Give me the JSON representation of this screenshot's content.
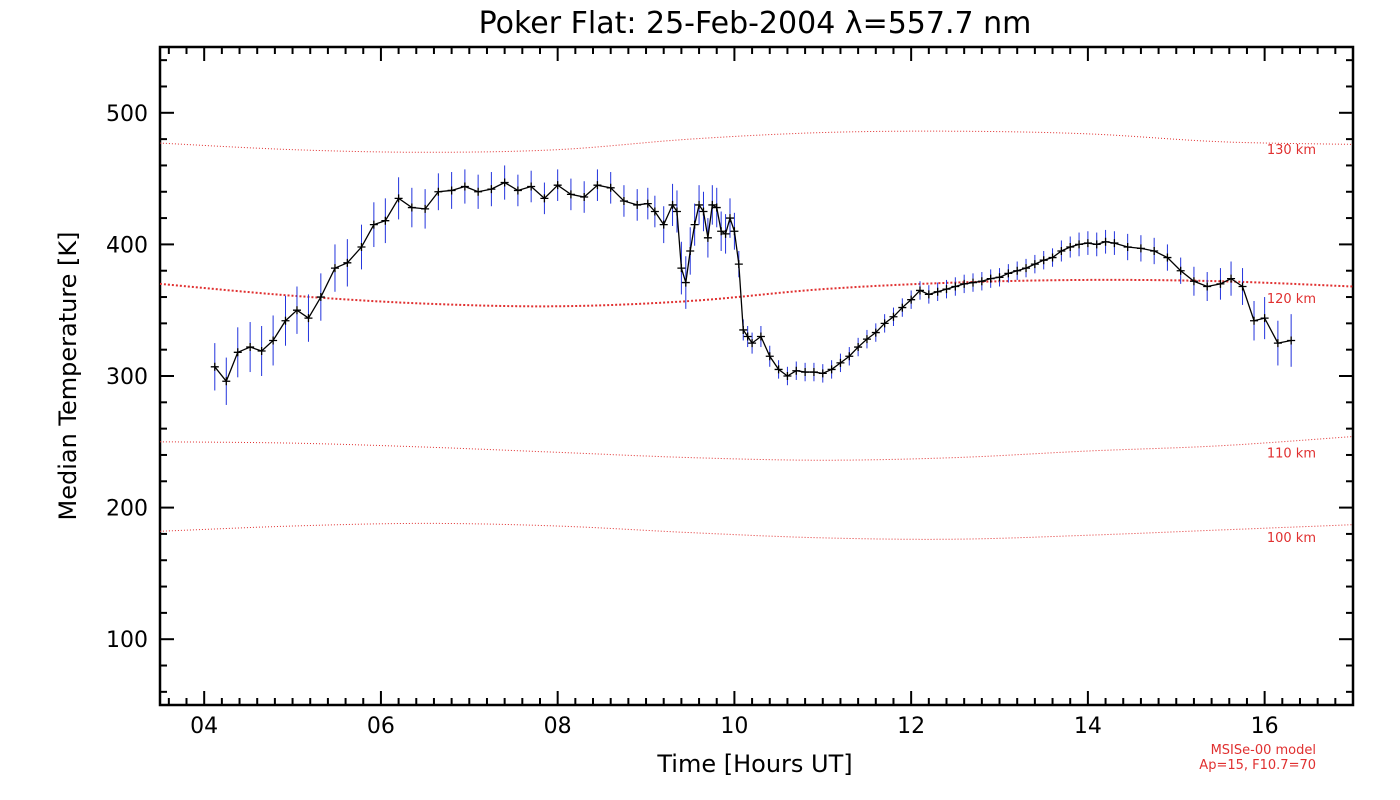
{
  "chart_data": {
    "type": "line",
    "title": "Poker Flat: 25-Feb-2004 λ=557.7 nm",
    "xlabel": "Time [Hours UT]",
    "ylabel": "Median Temperature [K]",
    "xlim": [
      3.5,
      17.0
    ],
    "ylim": [
      50,
      550
    ],
    "x_ticks": [
      4,
      6,
      8,
      10,
      12,
      14,
      16
    ],
    "x_tick_labels": [
      "04",
      "06",
      "08",
      "10",
      "12",
      "14",
      "16"
    ],
    "y_ticks": [
      100,
      200,
      300,
      400,
      500
    ],
    "y_tick_labels": [
      "100",
      "200",
      "300",
      "400",
      "500"
    ],
    "series": [
      {
        "name": "Median temperature",
        "color": "#000000",
        "error_color": "#2233dd",
        "x": [
          4.12,
          4.25,
          4.38,
          4.52,
          4.65,
          4.78,
          4.92,
          5.05,
          5.18,
          5.32,
          5.48,
          5.62,
          5.78,
          5.92,
          6.05,
          6.2,
          6.35,
          6.5,
          6.65,
          6.8,
          6.95,
          7.1,
          7.25,
          7.4,
          7.55,
          7.7,
          7.85,
          8.0,
          8.15,
          8.3,
          8.45,
          8.6,
          8.75,
          8.9,
          9.02,
          9.1,
          9.2,
          9.3,
          9.35,
          9.4,
          9.45,
          9.5,
          9.55,
          9.6,
          9.65,
          9.7,
          9.75,
          9.8,
          9.85,
          9.9,
          9.95,
          10.0,
          10.05,
          10.1,
          10.15,
          10.2,
          10.3,
          10.4,
          10.5,
          10.6,
          10.7,
          10.8,
          10.9,
          11.0,
          11.1,
          11.2,
          11.3,
          11.4,
          11.5,
          11.6,
          11.7,
          11.8,
          11.9,
          12.0,
          12.1,
          12.2,
          12.3,
          12.4,
          12.5,
          12.6,
          12.7,
          12.8,
          12.9,
          13.0,
          13.1,
          13.2,
          13.3,
          13.4,
          13.5,
          13.6,
          13.7,
          13.8,
          13.9,
          14.0,
          14.1,
          14.2,
          14.3,
          14.45,
          14.6,
          14.75,
          14.9,
          15.05,
          15.2,
          15.35,
          15.5,
          15.62,
          15.75,
          15.88,
          16.0,
          16.15,
          16.3
        ],
        "y": [
          307,
          296,
          318,
          322,
          319,
          327,
          342,
          350,
          344,
          360,
          382,
          386,
          398,
          415,
          418,
          435,
          428,
          427,
          440,
          441,
          444,
          440,
          442,
          447,
          441,
          444,
          435,
          445,
          438,
          436,
          445,
          443,
          433,
          430,
          431,
          425,
          415,
          430,
          425,
          382,
          371,
          395,
          415,
          430,
          425,
          405,
          430,
          428,
          410,
          408,
          420,
          410,
          385,
          335,
          330,
          325,
          330,
          315,
          305,
          300,
          304,
          303,
          303,
          302,
          305,
          310,
          315,
          322,
          328,
          333,
          340,
          345,
          352,
          358,
          365,
          362,
          364,
          366,
          368,
          370,
          371,
          372,
          374,
          375,
          378,
          380,
          382,
          385,
          388,
          390,
          395,
          398,
          400,
          401,
          400,
          402,
          401,
          398,
          397,
          395,
          390,
          380,
          372,
          368,
          370,
          374,
          368,
          342,
          344,
          325,
          327
        ],
        "yerr": [
          18,
          18,
          19,
          19,
          19,
          19,
          19,
          18,
          18,
          18,
          18,
          18,
          17,
          17,
          17,
          16,
          15,
          15,
          14,
          14,
          13,
          13,
          13,
          13,
          12,
          12,
          12,
          12,
          12,
          12,
          12,
          12,
          12,
          12,
          12,
          12,
          14,
          16,
          16,
          20,
          20,
          18,
          16,
          15,
          15,
          15,
          15,
          15,
          15,
          15,
          15,
          14,
          10,
          8,
          8,
          8,
          8,
          8,
          7,
          7,
          7,
          7,
          7,
          7,
          7,
          7,
          7,
          7,
          7,
          7,
          7,
          7,
          7,
          7,
          7,
          7,
          7,
          7,
          7,
          7,
          7,
          7,
          7,
          7,
          7,
          7,
          7,
          7,
          7,
          7,
          8,
          8,
          9,
          9,
          9,
          9,
          9,
          10,
          10,
          10,
          10,
          10,
          11,
          11,
          12,
          13,
          14,
          15,
          16,
          17,
          20
        ]
      },
      {
        "name": "130 km",
        "label": "130 km",
        "color": "#e03030",
        "style": "dotted-thin",
        "x": [
          3.5,
          5.0,
          6.5,
          8.0,
          9.5,
          11.0,
          12.5,
          14.0,
          15.5,
          17.0
        ],
        "y": [
          477,
          472,
          470,
          472,
          480,
          485,
          486,
          484,
          478,
          476
        ]
      },
      {
        "name": "120 km",
        "label": "120 km",
        "color": "#e03030",
        "style": "dotted-thick",
        "x": [
          3.5,
          5.0,
          6.5,
          8.0,
          9.5,
          11.0,
          12.5,
          14.0,
          15.5,
          17.0
        ],
        "y": [
          370,
          361,
          355,
          353,
          357,
          366,
          371,
          373,
          372,
          368
        ]
      },
      {
        "name": "110 km",
        "label": "110 km",
        "color": "#e03030",
        "style": "dotted-thin",
        "x": [
          3.5,
          5.0,
          6.5,
          8.0,
          9.5,
          11.0,
          12.5,
          14.0,
          15.5,
          17.0
        ],
        "y": [
          250,
          249,
          246,
          242,
          238,
          236,
          238,
          243,
          247,
          254
        ]
      },
      {
        "name": "100 km",
        "label": "100 km",
        "color": "#e03030",
        "style": "dotted-thin",
        "x": [
          3.5,
          5.0,
          6.5,
          8.0,
          9.5,
          11.0,
          12.5,
          14.0,
          15.5,
          17.0
        ],
        "y": [
          182,
          186,
          188,
          186,
          181,
          177,
          176,
          179,
          183,
          187
        ]
      }
    ],
    "annotations": [
      "MSISe-00 model",
      "Ap=15, F10.7=70"
    ]
  }
}
